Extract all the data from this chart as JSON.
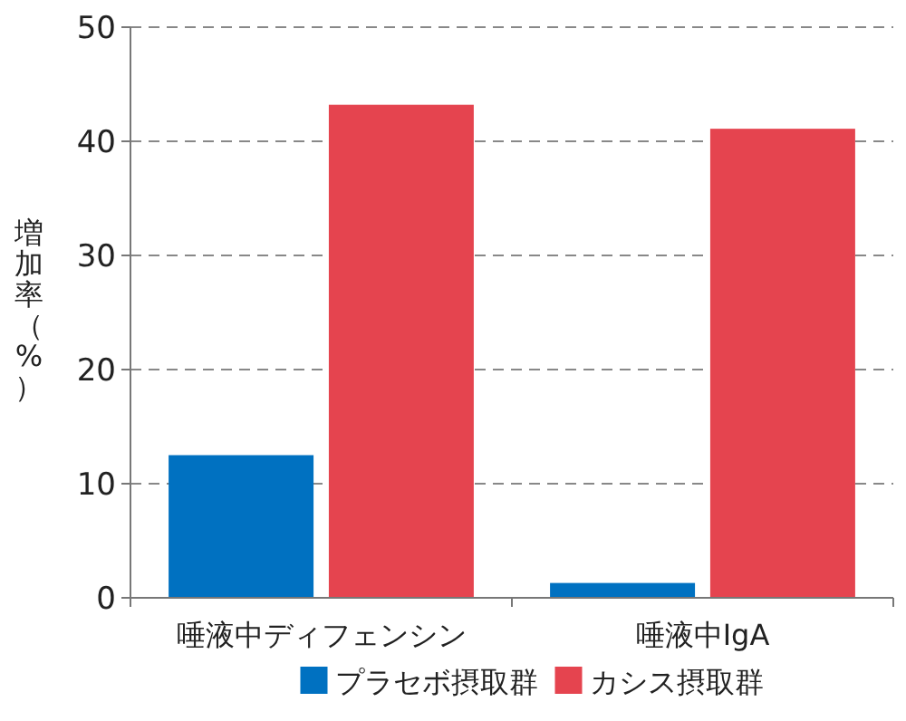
{
  "chart_data": {
    "type": "bar",
    "ylabel": "増加率（%）",
    "categories": [
      "唾液中ディフェンシン",
      "唾液中IgA"
    ],
    "series": [
      {
        "name": "プラセボ摂取群",
        "color": "#0071c1",
        "values": [
          12.5,
          1.3
        ]
      },
      {
        "name": "カシス摂取群",
        "color": "#e5444f",
        "values": [
          43.2,
          41.1
        ]
      }
    ],
    "ylim": [
      0,
      50
    ],
    "yticks": [
      0,
      10,
      20,
      30,
      40,
      50
    ],
    "grid": "y",
    "legend": "bottom"
  }
}
